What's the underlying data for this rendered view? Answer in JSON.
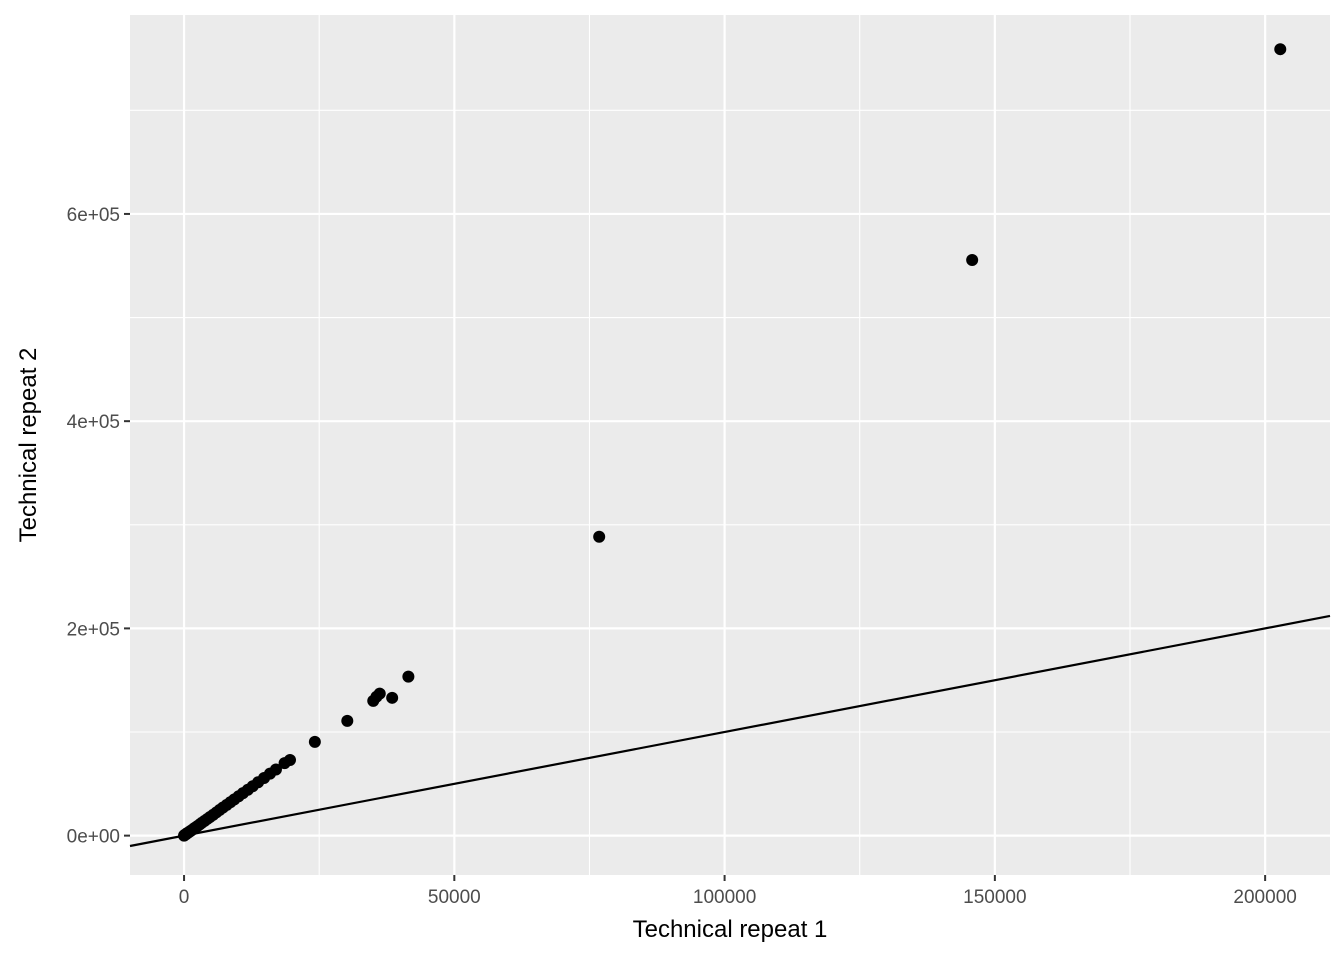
{
  "chart_data": {
    "type": "scatter",
    "title": "",
    "xlabel": "Technical repeat 1",
    "ylabel": "Technical repeat 2",
    "xlim": [
      -10000,
      212000
    ],
    "ylim": [
      -38000,
      792000
    ],
    "x_ticks": [
      {
        "value": 0,
        "label": "0"
      },
      {
        "value": 50000,
        "label": "50000"
      },
      {
        "value": 100000,
        "label": "100000"
      },
      {
        "value": 150000,
        "label": "150000"
      },
      {
        "value": 200000,
        "label": "200000"
      }
    ],
    "y_ticks": [
      {
        "value": 0,
        "label": "0e+00"
      },
      {
        "value": 200000,
        "label": "2e+05"
      },
      {
        "value": 400000,
        "label": "4e+05"
      },
      {
        "value": 600000,
        "label": "6e+05"
      }
    ],
    "grid": true,
    "reference_line": {
      "slope": 1,
      "intercept": 0
    },
    "points": [
      {
        "x": 0,
        "y": 0
      },
      {
        "x": 50,
        "y": 300
      },
      {
        "x": 100,
        "y": 500
      },
      {
        "x": 200,
        "y": 900
      },
      {
        "x": 300,
        "y": 1200
      },
      {
        "x": 400,
        "y": 1600
      },
      {
        "x": 500,
        "y": 2000
      },
      {
        "x": 600,
        "y": 2400
      },
      {
        "x": 800,
        "y": 3000
      },
      {
        "x": 1000,
        "y": 3800
      },
      {
        "x": 1200,
        "y": 4500
      },
      {
        "x": 1500,
        "y": 5600
      },
      {
        "x": 1800,
        "y": 6700
      },
      {
        "x": 2100,
        "y": 7900
      },
      {
        "x": 2500,
        "y": 9300
      },
      {
        "x": 2900,
        "y": 10800
      },
      {
        "x": 3300,
        "y": 12400
      },
      {
        "x": 3800,
        "y": 14200
      },
      {
        "x": 4300,
        "y": 16100
      },
      {
        "x": 4800,
        "y": 18000
      },
      {
        "x": 5400,
        "y": 20200
      },
      {
        "x": 6000,
        "y": 22500
      },
      {
        "x": 6600,
        "y": 24800
      },
      {
        "x": 7200,
        "y": 27100
      },
      {
        "x": 7900,
        "y": 29700
      },
      {
        "x": 8600,
        "y": 32300
      },
      {
        "x": 9300,
        "y": 35000
      },
      {
        "x": 10100,
        "y": 38000
      },
      {
        "x": 10900,
        "y": 41000
      },
      {
        "x": 11800,
        "y": 44300
      },
      {
        "x": 12700,
        "y": 47700
      },
      {
        "x": 13700,
        "y": 51500
      },
      {
        "x": 14800,
        "y": 55600
      },
      {
        "x": 15900,
        "y": 59800
      },
      {
        "x": 17000,
        "y": 63800
      },
      {
        "x": 18600,
        "y": 70000
      },
      {
        "x": 19600,
        "y": 73000
      },
      {
        "x": 24200,
        "y": 90500
      },
      {
        "x": 30200,
        "y": 110800
      },
      {
        "x": 35000,
        "y": 130000
      },
      {
        "x": 35600,
        "y": 134000
      },
      {
        "x": 36200,
        "y": 137000
      },
      {
        "x": 38500,
        "y": 133000
      },
      {
        "x": 41500,
        "y": 153500
      },
      {
        "x": 76800,
        "y": 288500
      },
      {
        "x": 145800,
        "y": 555500
      },
      {
        "x": 202800,
        "y": 759000
      }
    ]
  }
}
